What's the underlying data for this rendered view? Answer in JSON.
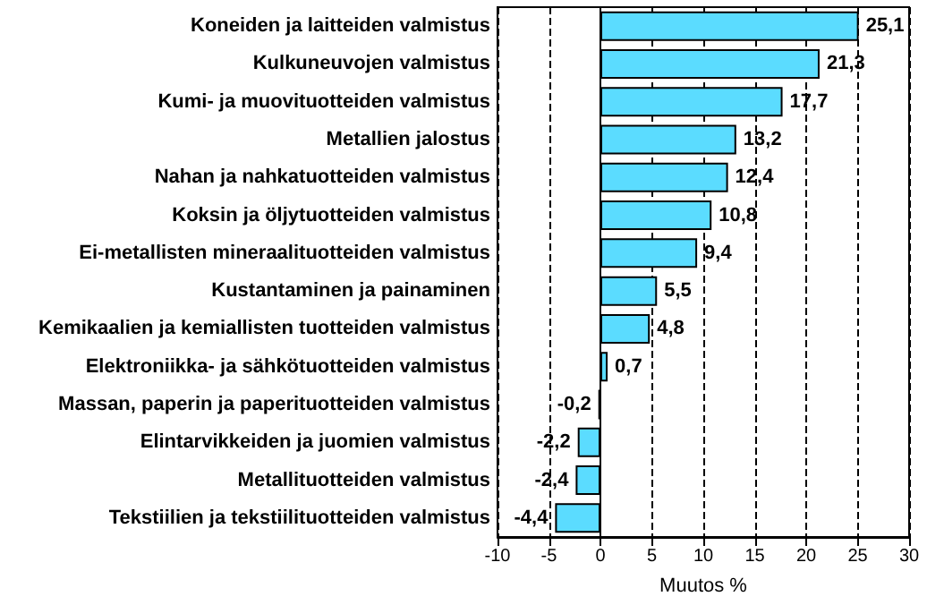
{
  "chart_data": {
    "type": "bar",
    "orientation": "horizontal",
    "xlabel": "Muutos %",
    "categories": [
      "Koneiden ja laitteiden valmistus",
      "Kulkuneuvojen valmistus",
      "Kumi- ja muovituotteiden valmistus",
      "Metallien jalostus",
      "Nahan ja nahkatuotteiden valmistus",
      "Koksin ja öljytuotteiden valmistus",
      "Ei-metallisten mineraalituotteiden valmistus",
      "Kustantaminen ja painaminen",
      "Kemikaalien ja kemiallisten tuotteiden valmistus",
      "Elektroniikka- ja sähkötuotteiden valmistus",
      "Massan, paperin ja paperituotteiden valmistus",
      "Elintarvikkeiden ja juomien valmistus",
      "Metallituotteiden valmistus",
      "Tekstiilien ja tekstiilituotteiden valmistus"
    ],
    "values": [
      25.1,
      21.3,
      17.7,
      13.2,
      12.4,
      10.8,
      9.4,
      5.5,
      4.8,
      0.7,
      -0.2,
      -2.2,
      -2.4,
      -4.4
    ],
    "value_labels": [
      "25,1",
      "21,3",
      "17,7",
      "13,2",
      "12,4",
      "10,8",
      "9,4",
      "5,5",
      "4,8",
      "0,7",
      "-0,2",
      "-2,2",
      "-2,4",
      "-4,4"
    ],
    "color": "#5bdcff",
    "xlim": [
      -10,
      30
    ],
    "xticks": [
      -10,
      -5,
      0,
      5,
      10,
      15,
      20,
      25,
      30
    ],
    "grid": "x"
  }
}
